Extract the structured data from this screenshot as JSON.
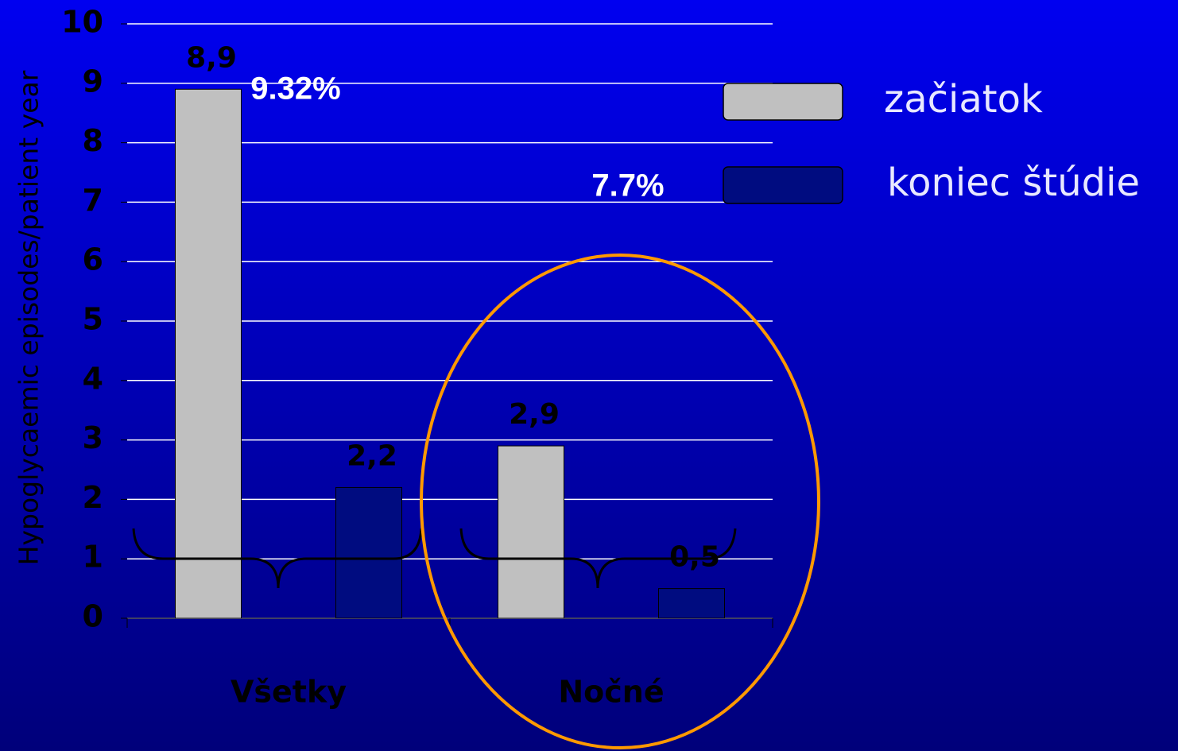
{
  "chart_data": {
    "type": "bar",
    "y_label": "Hypoglycaemic episodes/patient year",
    "categories": [
      "Všetky",
      "Nočné"
    ],
    "series": [
      {
        "name": "začiatok",
        "color": "#c0c0c0",
        "values": [
          8.9,
          2.9
        ],
        "value_labels": [
          "8,9",
          "2,9"
        ]
      },
      {
        "name": "koniec štúdie",
        "color": "#000c80",
        "values": [
          2.2,
          0.5
        ],
        "value_labels": [
          "2,2",
          "0,5"
        ]
      }
    ],
    "annotations": [
      "9.32%",
      "7.7%"
    ],
    "ylim": [
      0,
      10
    ],
    "yticks": [
      0,
      1,
      2,
      3,
      4,
      5,
      6,
      7,
      8,
      9,
      10
    ],
    "grid": true,
    "grid_color": "#ffffff",
    "legend": "right"
  }
}
